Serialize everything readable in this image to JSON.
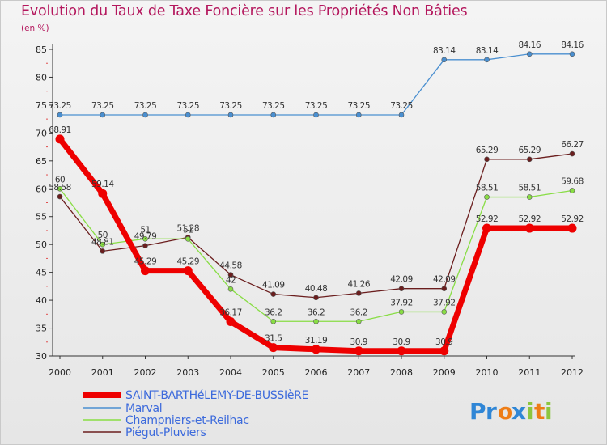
{
  "chart_data": {
    "type": "line",
    "title": "Evolution du Taux de Taxe Foncière sur les Propriétés Non Bâties",
    "unit_label": "(en %)",
    "x": [
      "2000",
      "2001",
      "2002",
      "2003",
      "2004",
      "2005",
      "2006",
      "2007",
      "2008",
      "2009",
      "2010",
      "2011",
      "2012"
    ],
    "ylim": [
      30,
      85
    ],
    "yticks": [
      30,
      35,
      40,
      45,
      50,
      55,
      60,
      65,
      70,
      75,
      80,
      85
    ],
    "series": [
      {
        "name": "SAINT-BARTHéLEMY-DE-BUSSIèRE",
        "color": "#ee0000",
        "values": [
          68.91,
          59.14,
          45.29,
          45.29,
          36.17,
          31.5,
          31.19,
          30.9,
          30.9,
          30.9,
          52.92,
          52.92,
          52.92
        ],
        "labels": [
          "68.91",
          "59.14",
          "45.29",
          "45.29",
          "36.17",
          "31.5",
          "31.19",
          "30.9",
          "30.9",
          "30.9",
          "52.92",
          "52.92",
          "52.92"
        ]
      },
      {
        "name": "Marval",
        "color": "#4a8fd0",
        "values": [
          73.25,
          73.25,
          73.25,
          73.25,
          73.25,
          73.25,
          73.25,
          73.25,
          73.25,
          83.14,
          83.14,
          84.16,
          84.16
        ],
        "labels": [
          "73.25",
          "73.25",
          "73.25",
          "73.25",
          "73.25",
          "73.25",
          "73.25",
          "73.25",
          "73.25",
          "83.14",
          "83.14",
          "84.16",
          "84.16"
        ]
      },
      {
        "name": "Champniers-et-Reilhac",
        "color": "#88dd44",
        "values": [
          60,
          50,
          51,
          51,
          42,
          36.2,
          36.2,
          36.2,
          37.92,
          37.92,
          58.51,
          58.51,
          59.68
        ],
        "labels": [
          "60",
          "50",
          "51",
          "51",
          "42",
          "36.2",
          "36.2",
          "36.2",
          "37.92",
          "37.92",
          "58.51",
          "58.51",
          "59.68"
        ]
      },
      {
        "name": "Piégut-Pluviers",
        "color": "#6b1e1e",
        "values": [
          58.58,
          48.81,
          49.79,
          51.28,
          44.58,
          41.09,
          40.48,
          41.26,
          42.09,
          42.09,
          65.29,
          65.29,
          66.27
        ],
        "labels": [
          "58.58",
          "48.81",
          "49.79",
          "51.28",
          "44.58",
          "41.09",
          "40.48",
          "41.26",
          "42.09",
          "42.09",
          "65.29",
          "65.29",
          "66.27"
        ]
      }
    ],
    "legend_placement": "bottom-left",
    "grid": false
  },
  "logo": {
    "text": "Proxiti",
    "letters": [
      "P",
      "r",
      "o",
      "x",
      "i",
      "t",
      "i"
    ],
    "colors": [
      "#2f86d6",
      "#2f86d6",
      "#ee7d16",
      "#2f86d6",
      "#8cc63f",
      "#ee7d16",
      "#8cc63f"
    ]
  }
}
